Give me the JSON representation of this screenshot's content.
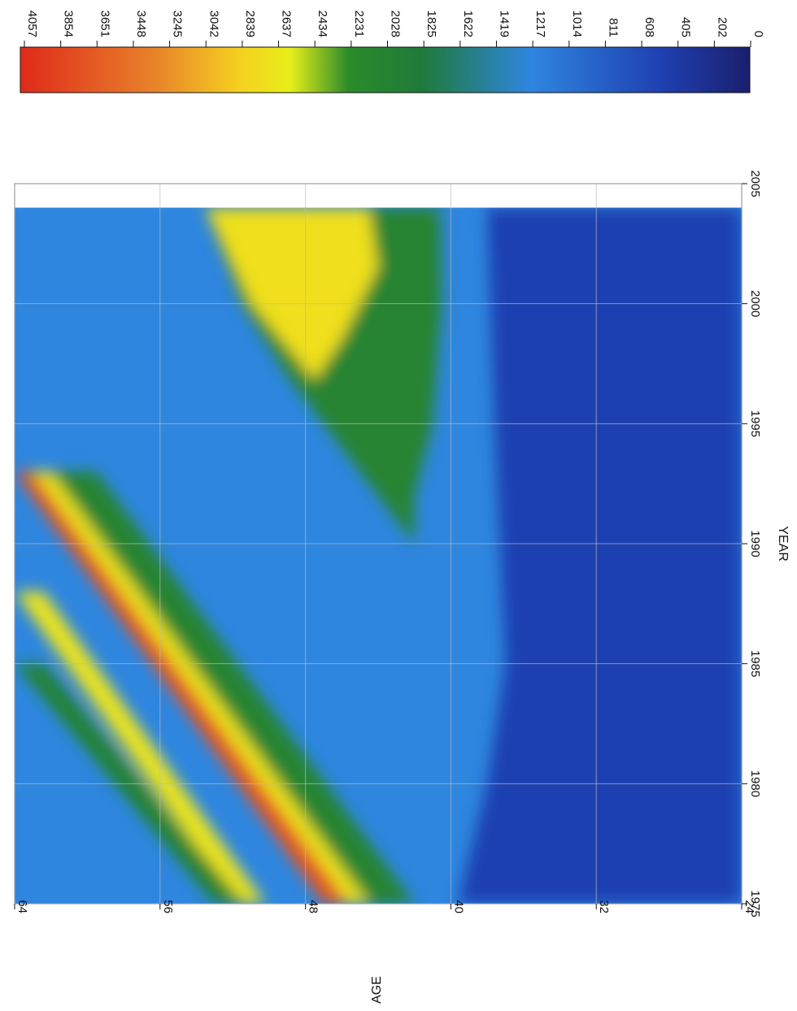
{
  "chart_data": {
    "type": "heatmap",
    "title": "",
    "xlabel": "YEAR",
    "ylabel": "AGE",
    "x_range": [
      1975,
      2005
    ],
    "y_range": [
      24,
      64
    ],
    "x_data_extent": [
      1975,
      2004
    ],
    "x_ticks": [
      "1975",
      "1980",
      "1985",
      "1990",
      "1995",
      "2000",
      "2005"
    ],
    "y_ticks": [
      "24",
      "32",
      "40",
      "48",
      "56",
      "64"
    ],
    "colorbar": {
      "range": [
        0,
        4057
      ],
      "labels": [
        "4057",
        "3854",
        "3651",
        "3448",
        "3245",
        "3042",
        "2839",
        "2637",
        "2434",
        "2231",
        "2028",
        "1825",
        "1622",
        "1419",
        "1217",
        "1014",
        "811",
        "608",
        "405",
        "202",
        "0"
      ],
      "colors": [
        "#1a1f6e",
        "#1f3fb0",
        "#2e86e0",
        "#1f7a3a",
        "#2a8c2a",
        "#e8ee1a",
        "#f5d020",
        "#e8802a",
        "#e02a1a"
      ],
      "stops": [
        0,
        0.12,
        0.3,
        0.45,
        0.55,
        0.63,
        0.7,
        0.82,
        1.0
      ]
    },
    "regions": [
      {
        "shape": "band",
        "start": [
          1975,
          47
        ],
        "end": [
          1993,
          64
        ],
        "width_age": 2.8,
        "value": 3700
      },
      {
        "shape": "band",
        "start": [
          1975,
          51.8
        ],
        "end": [
          1988,
          64
        ],
        "width_age": 1.6,
        "value": 2650
      },
      {
        "shape": "band",
        "start": [
          1975,
          45.6
        ],
        "end": [
          1993,
          63
        ],
        "width_age": 1.4,
        "value": 2650
      },
      {
        "shape": "band",
        "start": [
          1975,
          44.5
        ],
        "end": [
          1993,
          62
        ],
        "width_age": 2.5,
        "value": 2050
      },
      {
        "shape": "band",
        "start": [
          1975,
          53
        ],
        "end": [
          1985,
          64
        ],
        "width_age": 1.6,
        "value": 2000
      },
      {
        "shape": "region",
        "points": [
          [
            1990,
            42
          ],
          [
            1993.5,
            45.5
          ],
          [
            1997,
            49
          ],
          [
            2000,
            51.5
          ],
          [
            2004,
            53.5
          ],
          [
            2004,
            40.6
          ],
          [
            2000,
            40.5
          ],
          [
            1995,
            41
          ],
          [
            1992,
            42
          ]
        ],
        "value": 2050
      },
      {
        "shape": "region",
        "points": [
          [
            1996.8,
            47.5
          ],
          [
            2000,
            51
          ],
          [
            2004,
            53.5
          ],
          [
            2004,
            44.5
          ],
          [
            2001.5,
            44
          ],
          [
            2000,
            45
          ],
          [
            1998.5,
            46
          ]
        ],
        "value": 2700
      },
      {
        "shape": "region",
        "points": [
          [
            1975,
            24
          ],
          [
            2004,
            24
          ],
          [
            2004,
            38
          ],
          [
            1995,
            37.6
          ],
          [
            1985,
            37
          ],
          [
            1980,
            38
          ],
          [
            1975,
            39.6
          ]
        ],
        "value": 500
      }
    ]
  }
}
